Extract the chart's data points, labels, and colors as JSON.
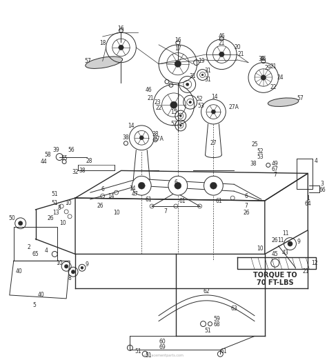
{
  "bg_color": "#ffffff",
  "line_color": "#2a2a2a",
  "fig_width": 4.74,
  "fig_height": 5.22,
  "dpi": 100,
  "torque_text_1": "TORQUE TO",
  "torque_text_2": "70 FT-LBS",
  "watermark": "ereplacementparts.com"
}
